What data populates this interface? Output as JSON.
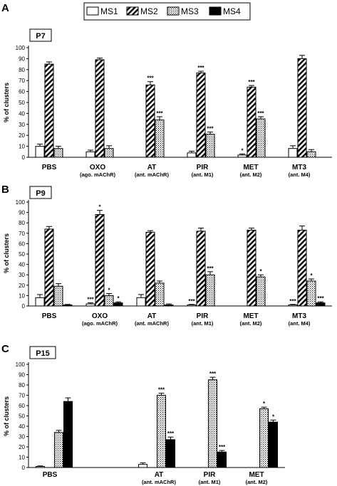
{
  "legend": {
    "items": [
      {
        "label": "MS1",
        "pattern": "white"
      },
      {
        "label": "MS2",
        "pattern": "diag"
      },
      {
        "label": "MS3",
        "pattern": "dots"
      },
      {
        "label": "MS4",
        "pattern": "black"
      }
    ]
  },
  "colors": {
    "stroke": "#000000",
    "background": "#ffffff",
    "fill_ms4": "#000000"
  },
  "chart_data": [
    {
      "type": "bar",
      "panel_letter": "A",
      "title": "P7",
      "ylabel": "% of clusters",
      "ylim": [
        0,
        100
      ],
      "yticks": [
        0,
        10,
        20,
        30,
        40,
        50,
        60,
        70,
        80,
        90,
        100
      ],
      "categories": [
        "PBS",
        "OXO",
        "AT",
        "PIR",
        "MET",
        "MT3"
      ],
      "category_sublabels": [
        "",
        "(ago. mAChR)",
        "(ant. mAChR)",
        "(ant. M1)",
        "(ant. M2)",
        "(ant. M4)"
      ],
      "series": [
        {
          "name": "MS1",
          "values": [
            10,
            5,
            null,
            4,
            2,
            8
          ],
          "errors": [
            2,
            1.5,
            null,
            1.5,
            1,
            2.5
          ],
          "sig": [
            "",
            "",
            "",
            "",
            "*",
            ""
          ]
        },
        {
          "name": "MS2",
          "values": [
            85,
            89,
            66,
            77,
            64,
            90
          ],
          "errors": [
            2,
            1.5,
            3,
            1.5,
            1.5,
            3
          ],
          "sig": [
            "",
            "",
            "***",
            "***",
            "***",
            ""
          ]
        },
        {
          "name": "MS3",
          "values": [
            8,
            8,
            34,
            21,
            35,
            5
          ],
          "errors": [
            2,
            2.5,
            3,
            2,
            2,
            2
          ],
          "sig": [
            "",
            "",
            "***",
            "***",
            "***",
            ""
          ]
        },
        {
          "name": "MS4",
          "values": [
            null,
            null,
            null,
            null,
            null,
            null
          ],
          "errors": [
            null,
            null,
            null,
            null,
            null,
            null
          ],
          "sig": [
            "",
            "",
            "",
            "",
            "",
            ""
          ]
        }
      ]
    },
    {
      "type": "bar",
      "panel_letter": "B",
      "title": "P9",
      "ylabel": "% of clusters",
      "ylim": [
        0,
        100
      ],
      "yticks": [
        0,
        10,
        20,
        30,
        40,
        50,
        60,
        70,
        80,
        90,
        100
      ],
      "categories": [
        "PBS",
        "OXO",
        "AT",
        "PIR",
        "MET",
        "MT3"
      ],
      "category_sublabels": [
        "",
        "(ago. mAChR)",
        "(ant. mAChR)",
        "(ant. M1)",
        "(ant. M2)",
        "(ant. M4)"
      ],
      "series": [
        {
          "name": "MS1",
          "values": [
            8,
            2,
            8,
            1,
            null,
            1
          ],
          "errors": [
            3,
            1,
            3,
            0.5,
            null,
            0.5
          ],
          "sig": [
            "",
            "***",
            "",
            "***",
            "",
            "***"
          ]
        },
        {
          "name": "MS2",
          "values": [
            74,
            88,
            71,
            72,
            73,
            73
          ],
          "errors": [
            2.5,
            4,
            1.5,
            3,
            2,
            4
          ],
          "sig": [
            "",
            "*",
            "",
            "",
            "",
            ""
          ]
        },
        {
          "name": "MS3",
          "values": [
            19,
            10,
            22,
            30,
            28,
            24
          ],
          "errors": [
            2.5,
            2,
            2,
            3,
            2,
            2
          ],
          "sig": [
            "",
            "*",
            "",
            "***",
            "*",
            "*"
          ]
        },
        {
          "name": "MS4",
          "values": [
            1,
            3,
            1,
            null,
            null,
            3
          ],
          "errors": [
            0.5,
            1,
            1,
            null,
            null,
            1
          ],
          "sig": [
            "",
            "*",
            "",
            "",
            "",
            "***"
          ]
        }
      ]
    },
    {
      "type": "bar",
      "panel_letter": "C",
      "title": "P15",
      "ylabel": "% of clusters",
      "ylim": [
        0,
        100
      ],
      "yticks": [
        0,
        10,
        20,
        30,
        40,
        50,
        60,
        70,
        80,
        90,
        100
      ],
      "categories": [
        "PBS",
        "",
        "AT",
        "PIR",
        "MET"
      ],
      "category_sublabels": [
        "",
        "",
        "(ant. mAChR)",
        "(ant. M1)",
        "(ant. M2)"
      ],
      "series": [
        {
          "name": "MS1",
          "values": [
            1,
            null,
            3,
            null,
            null
          ],
          "errors": [
            0.5,
            null,
            1.5,
            null,
            null
          ],
          "sig": [
            "",
            "",
            "",
            "",
            ""
          ]
        },
        {
          "name": "MS2",
          "values": [
            null,
            null,
            null,
            null,
            null
          ],
          "errors": [
            null,
            null,
            null,
            null,
            null
          ],
          "sig": [
            "",
            "",
            "",
            "",
            ""
          ]
        },
        {
          "name": "MS3",
          "values": [
            34,
            null,
            70,
            85,
            57
          ],
          "errors": [
            2,
            null,
            2,
            2.5,
            1.5
          ],
          "sig": [
            "",
            "",
            "***",
            "***",
            "*"
          ]
        },
        {
          "name": "MS4",
          "values": [
            64,
            null,
            27,
            15,
            44
          ],
          "errors": [
            3.5,
            null,
            2.5,
            1.5,
            2
          ],
          "sig": [
            "",
            "",
            "***",
            "***",
            "*"
          ]
        }
      ]
    }
  ]
}
